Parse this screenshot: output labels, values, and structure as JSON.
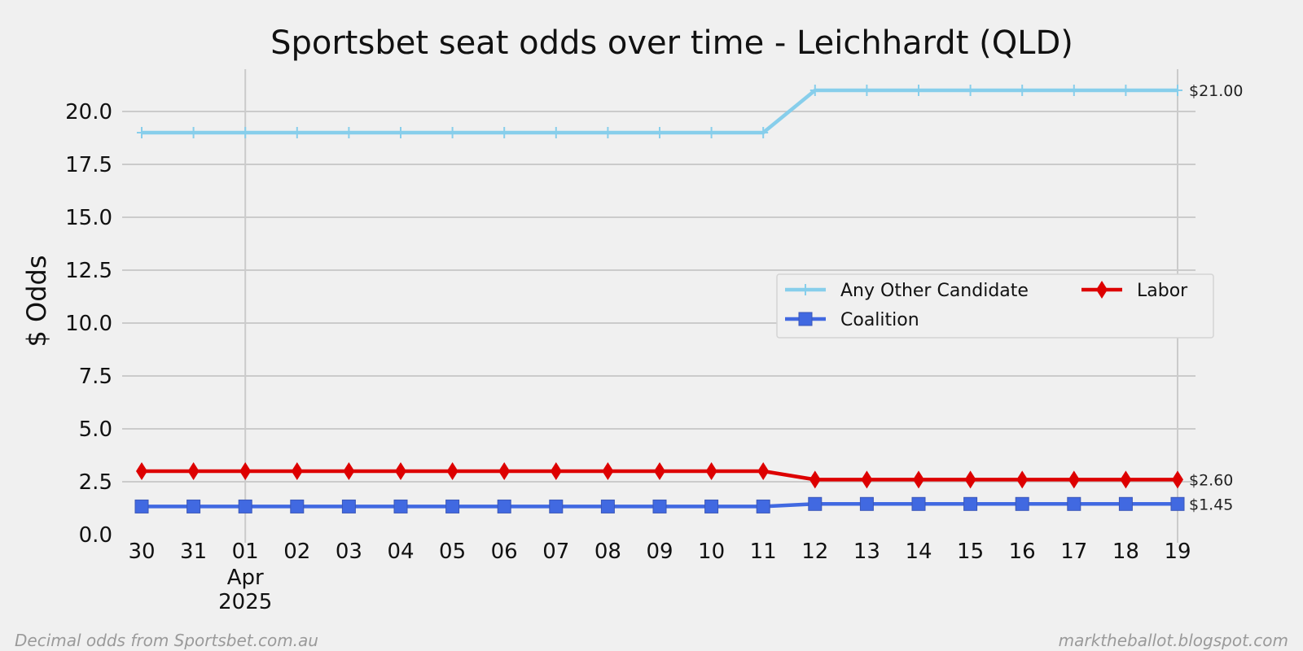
{
  "chart_data": {
    "type": "line",
    "title": "Sportsbet seat odds over time - Leichhardt (QLD)",
    "xlabel": "",
    "ylabel": "$ Odds",
    "x": [
      "30",
      "31",
      "01",
      "02",
      "03",
      "04",
      "05",
      "06",
      "07",
      "08",
      "09",
      "10",
      "11",
      "12",
      "13",
      "14",
      "15",
      "16",
      "17",
      "18",
      "19"
    ],
    "x_month_label": {
      "tick": "01",
      "lines": [
        "Apr",
        "2025"
      ]
    },
    "ylim": [
      0,
      22
    ],
    "yticks": [
      "0.0",
      "2.5",
      "5.0",
      "7.5",
      "10.0",
      "12.5",
      "15.0",
      "17.5",
      "20.0"
    ],
    "grid": true,
    "legend": {
      "position": "center-right",
      "columns": 2
    },
    "series": [
      {
        "name": "Any Other Candidate",
        "color": "#87ceeb",
        "marker": "plus",
        "values": [
          19,
          19,
          19,
          19,
          19,
          19,
          19,
          19,
          19,
          19,
          19,
          19,
          19,
          21,
          21,
          21,
          21,
          21,
          21,
          21,
          21
        ],
        "end_label": "$21.00"
      },
      {
        "name": "Coalition",
        "color": "#4169e1",
        "marker": "square",
        "values": [
          1.33,
          1.33,
          1.33,
          1.33,
          1.33,
          1.33,
          1.33,
          1.33,
          1.33,
          1.33,
          1.33,
          1.33,
          1.33,
          1.45,
          1.45,
          1.45,
          1.45,
          1.45,
          1.45,
          1.45,
          1.45
        ],
        "end_label": "$1.45"
      },
      {
        "name": "Labor",
        "color": "#dd0000",
        "marker": "diamond",
        "values": [
          3,
          3,
          3,
          3,
          3,
          3,
          3,
          3,
          3,
          3,
          3,
          3,
          3,
          2.6,
          2.6,
          2.6,
          2.6,
          2.6,
          2.6,
          2.6,
          2.6
        ],
        "end_label": "$2.60"
      }
    ],
    "legend_order": [
      "Any Other Candidate",
      "Coalition",
      "Labor"
    ],
    "footer_left": "Decimal odds from Sportsbet.com.au",
    "footer_right": "marktheballot.blogspot.com"
  }
}
